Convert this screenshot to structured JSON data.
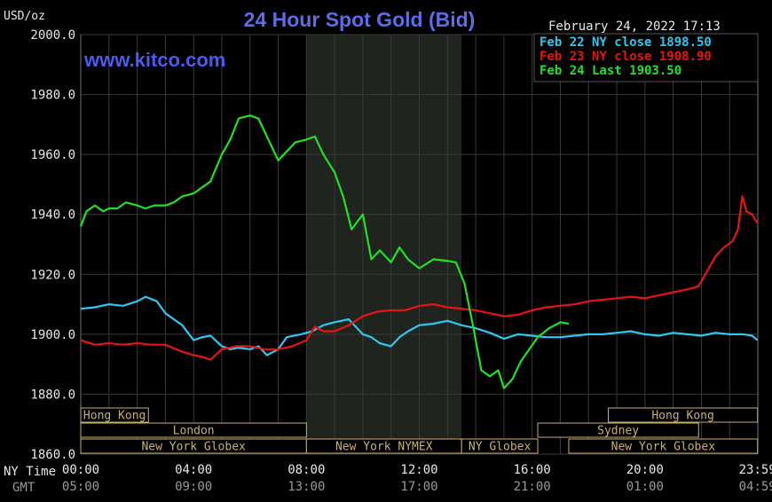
{
  "header": {
    "title": "24 Hour Spot Gold (Bid)",
    "unit": "USD/oz",
    "timestamp": "February 24, 2022 17:13",
    "brand": "www.kitco.com"
  },
  "legend": [
    {
      "label": "Feb 22 NY close 1898.50",
      "color": "#2ec8f0"
    },
    {
      "label": "Feb 23 NY close 1908.90",
      "color": "#e81414"
    },
    {
      "label": "Feb 24 Last 1903.50",
      "color": "#22e022"
    }
  ],
  "axis_labels": {
    "ny_time": "NY Time",
    "gmt": "GMT"
  },
  "sessions": [
    {
      "label": "Hong Kong",
      "start": 0,
      "end": 2.4
    },
    {
      "label": "London",
      "start": 0,
      "end": 8.0
    },
    {
      "label": "New York Globex",
      "start": 0,
      "end": 8.0
    },
    {
      "label": "New York NYMEX",
      "start": 8.0,
      "end": 13.5
    },
    {
      "label": "NY Globex",
      "start": 13.5,
      "end": 16.2
    },
    {
      "label": "Hong Kong",
      "start": 18.7,
      "end": 23.99
    },
    {
      "label": "Sydney",
      "start": 16.2,
      "end": 21.9
    },
    {
      "label": "New York Globex",
      "start": 17.3,
      "end": 23.99
    }
  ],
  "chart_data": {
    "type": "line",
    "title": "24 Hour Spot Gold (Bid)",
    "ylabel": "USD/oz",
    "ylim": [
      1860,
      2000
    ],
    "yticks": [
      "2000.0",
      "1980.0",
      "1960.0",
      "1940.0",
      "1920.0",
      "1900.0",
      "1880.0",
      "1860.0"
    ],
    "xlim": [
      0,
      24
    ],
    "xticks_ny": [
      "00:00",
      "04:00",
      "08:00",
      "12:00",
      "16:00",
      "20:00",
      "23:59"
    ],
    "xticks_gmt": [
      "05:00",
      "09:00",
      "13:00",
      "17:00",
      "21:00",
      "01:00",
      "04:59"
    ],
    "shaded_hours": [
      8.0,
      13.5
    ],
    "grid": true,
    "series": [
      {
        "name": "Feb 22 NY close 1898.50",
        "color": "#2ec8f0",
        "x": [
          0,
          0.5,
          1,
          1.5,
          2,
          2.3,
          2.7,
          3,
          3.3,
          3.6,
          4,
          4.3,
          4.6,
          5,
          5.3,
          5.6,
          6,
          6.3,
          6.6,
          7,
          7.3,
          7.8,
          8.2,
          8.6,
          9,
          9.5,
          10,
          10.3,
          10.6,
          11,
          11.3,
          11.6,
          12,
          12.5,
          13,
          13.5,
          14,
          14.5,
          15,
          15.5,
          16,
          16.5,
          17,
          17.5,
          18,
          18.5,
          19,
          19.5,
          20,
          20.5,
          21,
          21.5,
          22,
          22.5,
          23,
          23.5,
          23.8,
          23.99
        ],
        "values": [
          1908.5,
          1909,
          1910,
          1909.5,
          1911,
          1912.5,
          1911,
          1907,
          1905,
          1903,
          1898,
          1899,
          1899.5,
          1896,
          1895,
          1895.5,
          1895,
          1896,
          1893,
          1895,
          1899,
          1900,
          1901,
          1903,
          1904,
          1905,
          1900,
          1899,
          1897,
          1896,
          1899,
          1901,
          1903,
          1903.5,
          1904.5,
          1903,
          1902,
          1900.5,
          1898.5,
          1900,
          1899.5,
          1899,
          1899,
          1899.5,
          1900,
          1900,
          1900.5,
          1901,
          1900,
          1899.5,
          1900.5,
          1900,
          1899.5,
          1900.5,
          1900,
          1900,
          1899.5,
          1898
        ]
      },
      {
        "name": "Feb 23 NY close 1908.90",
        "color": "#e81414",
        "x": [
          0,
          0.5,
          1,
          1.5,
          2,
          2.5,
          3,
          3.5,
          4,
          4.3,
          4.6,
          5,
          5.5,
          6,
          6.5,
          7,
          7.5,
          8,
          8.3,
          8.6,
          9,
          9.5,
          10,
          10.5,
          11,
          11.5,
          12,
          12.5,
          13,
          13.5,
          14,
          14.5,
          15,
          15.5,
          16,
          16.5,
          17,
          17.5,
          18,
          18.5,
          19,
          19.5,
          20,
          20.5,
          21,
          21.5,
          21.9,
          22.2,
          22.5,
          22.8,
          23.1,
          23.3,
          23.45,
          23.6,
          23.8,
          23.99
        ],
        "values": [
          1898,
          1896.5,
          1897,
          1896.5,
          1897,
          1896.5,
          1896.5,
          1894.5,
          1893,
          1892.5,
          1891.5,
          1895,
          1896,
          1896,
          1895,
          1895,
          1896,
          1898,
          1902.5,
          1901,
          1901,
          1903,
          1906,
          1907.5,
          1908,
          1908,
          1909.5,
          1910,
          1909,
          1908.5,
          1908,
          1907,
          1906,
          1906.5,
          1908,
          1909,
          1909.5,
          1910,
          1911,
          1911.5,
          1912,
          1912.5,
          1912,
          1913,
          1914,
          1915,
          1916,
          1921,
          1926,
          1929,
          1931,
          1935,
          1946,
          1941,
          1940,
          1937
        ]
      },
      {
        "name": "Feb 24 Last 1903.50",
        "color": "#22e022",
        "x": [
          0,
          0.2,
          0.5,
          0.8,
          1,
          1.3,
          1.6,
          2,
          2.3,
          2.6,
          3,
          3.3,
          3.6,
          4,
          4.3,
          4.6,
          5,
          5.3,
          5.6,
          6,
          6.3,
          6.6,
          7,
          7.3,
          7.6,
          8,
          8.3,
          8.6,
          9,
          9.3,
          9.6,
          10,
          10.3,
          10.6,
          11,
          11.3,
          11.6,
          12,
          12.5,
          13,
          13.3,
          13.6,
          13.9,
          14.2,
          14.5,
          14.8,
          15,
          15.3,
          15.6,
          15.9,
          16.2,
          16.6,
          17,
          17.3
        ],
        "values": [
          1936,
          1941,
          1943,
          1941,
          1942,
          1942,
          1944,
          1943,
          1942,
          1943,
          1943,
          1944,
          1946,
          1947,
          1949,
          1951,
          1960,
          1965,
          1972,
          1973,
          1972,
          1966,
          1958,
          1961,
          1964,
          1965,
          1966,
          1960,
          1954,
          1946,
          1935,
          1940,
          1925,
          1928,
          1924,
          1929,
          1925,
          1922,
          1925,
          1924.5,
          1924,
          1917,
          1903,
          1888,
          1886,
          1888,
          1882,
          1885,
          1891,
          1895,
          1899,
          1902,
          1904,
          1903.5
        ]
      }
    ]
  }
}
